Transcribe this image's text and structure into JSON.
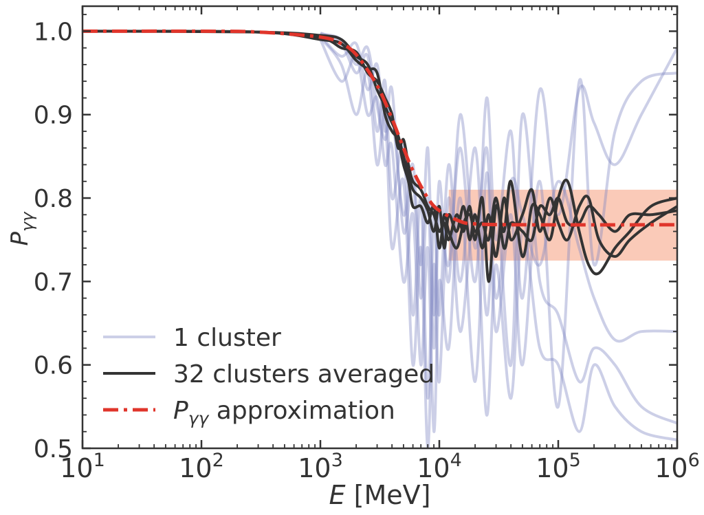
{
  "chart_data": {
    "type": "line",
    "title": "",
    "xlabel": "E [MeV]",
    "xlabel_var": "E",
    "xlabel_unit": "[MeV]",
    "ylabel": "P_γγ",
    "x_scale": "log",
    "xlim": [
      10,
      1000000
    ],
    "ylim": [
      0.5,
      1.03
    ],
    "grid": false,
    "legend_position": "lower-left",
    "x_ticks": [
      {
        "value": 10,
        "base": "10",
        "exp": "1"
      },
      {
        "value": 100,
        "base": "10",
        "exp": "2"
      },
      {
        "value": 1000,
        "base": "10",
        "exp": "3"
      },
      {
        "value": 10000,
        "base": "10",
        "exp": "4"
      },
      {
        "value": 100000,
        "base": "10",
        "exp": "5"
      },
      {
        "value": 1000000,
        "base": "10",
        "exp": "6"
      }
    ],
    "y_ticks": [
      0.5,
      0.6,
      0.7,
      0.8,
      0.9,
      1.0
    ],
    "y_tick_labels": [
      "0.5",
      "0.6",
      "0.7",
      "0.8",
      "0.9",
      "1.0"
    ],
    "band": {
      "x": [
        12000,
        1000000
      ],
      "y_low": 0.725,
      "y_high": 0.81,
      "color": "#f8b8a0"
    },
    "colors": {
      "single": "#8088c4",
      "averaged": "#333333",
      "approx": "#e0352b",
      "axis": "#333333"
    },
    "legend": [
      {
        "label": "1 cluster",
        "style": "single"
      },
      {
        "label": "32 clusters averaged",
        "style": "averaged"
      },
      {
        "label_var": "P",
        "label_sub": "γγ",
        "label_rest": " approximation",
        "style": "approx"
      }
    ],
    "series": [
      {
        "name": "P_γγ approximation",
        "style": "approx",
        "x": [
          10,
          100,
          300,
          1000,
          1500,
          2000,
          3000,
          4000,
          5000,
          6000,
          8000,
          10000,
          15000,
          20000,
          50000,
          1000000
        ],
        "y": [
          1.0,
          1.0,
          0.999,
          0.993,
          0.985,
          0.972,
          0.935,
          0.895,
          0.86,
          0.833,
          0.8,
          0.785,
          0.772,
          0.769,
          0.768,
          0.768
        ]
      },
      {
        "style": "single",
        "x": [
          1000,
          1500,
          2000,
          2500,
          3000,
          3500,
          4000,
          5000,
          6000,
          7000,
          8000,
          9000,
          10000,
          12000,
          15000,
          20000,
          25000,
          30000,
          40000,
          50000,
          70000,
          100000,
          150000,
          200000,
          300000,
          500000,
          1000000
        ],
        "y": [
          0.995,
          0.97,
          0.985,
          0.93,
          0.96,
          0.88,
          0.93,
          0.76,
          0.82,
          0.68,
          0.8,
          0.62,
          0.78,
          0.72,
          0.86,
          0.7,
          0.92,
          0.75,
          0.88,
          0.68,
          0.93,
          0.78,
          0.93,
          0.89,
          0.84,
          0.9,
          0.98
        ]
      },
      {
        "style": "single",
        "x": [
          1000,
          1500,
          2000,
          2500,
          3000,
          3500,
          4000,
          5000,
          6000,
          7000,
          8000,
          9000,
          10000,
          12000,
          15000,
          20000,
          25000,
          30000,
          40000,
          50000,
          70000,
          100000,
          150000,
          200000,
          300000,
          500000,
          1000000
        ],
        "y": [
          0.99,
          0.94,
          0.97,
          0.9,
          0.92,
          0.84,
          0.86,
          0.7,
          0.78,
          0.6,
          0.74,
          0.52,
          0.7,
          0.62,
          0.8,
          0.58,
          0.83,
          0.64,
          0.78,
          0.6,
          0.82,
          0.55,
          0.94,
          0.72,
          0.88,
          0.94,
          0.95
        ]
      },
      {
        "style": "single",
        "x": [
          1000,
          1500,
          2000,
          2500,
          3000,
          3500,
          4000,
          5000,
          6000,
          7000,
          8000,
          9000,
          10000,
          12000,
          15000,
          20000,
          25000,
          30000,
          40000,
          50000,
          70000,
          100000,
          150000,
          200000,
          300000,
          500000,
          1000000
        ],
        "y": [
          0.998,
          0.985,
          0.95,
          0.97,
          0.88,
          0.94,
          0.8,
          0.86,
          0.66,
          0.8,
          0.56,
          0.78,
          0.66,
          0.84,
          0.7,
          0.86,
          0.66,
          0.8,
          0.6,
          0.9,
          0.7,
          0.66,
          0.58,
          0.62,
          0.6,
          0.55,
          0.53
        ]
      },
      {
        "style": "single",
        "x": [
          1000,
          1500,
          2000,
          2500,
          3000,
          3500,
          4000,
          5000,
          6000,
          7000,
          8000,
          9000,
          10000,
          12000,
          15000,
          20000,
          25000,
          30000,
          40000,
          50000,
          70000,
          100000,
          150000,
          200000,
          300000,
          500000,
          1000000
        ],
        "y": [
          0.992,
          0.96,
          0.9,
          0.95,
          0.84,
          0.9,
          0.74,
          0.82,
          0.6,
          0.74,
          0.5,
          0.72,
          0.58,
          0.8,
          0.64,
          0.78,
          0.54,
          0.72,
          0.56,
          0.76,
          0.62,
          0.6,
          0.52,
          0.6,
          0.55,
          0.52,
          0.51
        ]
      },
      {
        "style": "single",
        "x": [
          1000,
          1500,
          2000,
          2500,
          3000,
          3500,
          4000,
          5000,
          6000,
          7000,
          8000,
          9000,
          10000,
          12000,
          15000,
          20000,
          25000,
          30000,
          40000,
          50000,
          70000,
          100000,
          150000,
          200000,
          300000,
          500000,
          1000000
        ],
        "y": [
          0.997,
          0.99,
          0.96,
          0.98,
          0.91,
          0.87,
          0.9,
          0.78,
          0.84,
          0.72,
          0.86,
          0.66,
          0.82,
          0.7,
          0.9,
          0.74,
          0.86,
          0.68,
          0.82,
          0.78,
          0.72,
          0.82,
          0.74,
          0.68,
          0.63,
          0.64,
          0.64
        ]
      },
      {
        "name": "32 clusters averaged",
        "style": "averaged",
        "x": [
          10,
          300,
          1000,
          1500,
          2000,
          2500,
          3000,
          3500,
          4000,
          4500,
          5000,
          5500,
          6000,
          7000,
          8000,
          9000,
          10000,
          11000,
          12000,
          14000,
          16000,
          18000,
          20000,
          23000,
          26000,
          30000,
          35000,
          40000,
          50000,
          60000,
          70000,
          85000,
          100000,
          120000,
          150000,
          180000,
          220000,
          300000,
          400000,
          600000,
          1000000
        ],
        "y": [
          1.0,
          0.999,
          0.992,
          0.98,
          0.975,
          0.95,
          0.94,
          0.92,
          0.9,
          0.86,
          0.87,
          0.84,
          0.82,
          0.81,
          0.79,
          0.78,
          0.76,
          0.77,
          0.75,
          0.78,
          0.76,
          0.79,
          0.75,
          0.8,
          0.7,
          0.79,
          0.76,
          0.82,
          0.73,
          0.79,
          0.78,
          0.75,
          0.8,
          0.82,
          0.76,
          0.72,
          0.71,
          0.74,
          0.76,
          0.79,
          0.8
        ]
      },
      {
        "style": "averaged",
        "x": [
          10,
          300,
          1000,
          1500,
          2000,
          2500,
          3000,
          3500,
          4000,
          4500,
          5000,
          5500,
          6000,
          7000,
          8000,
          9000,
          10000,
          11000,
          12000,
          14000,
          16000,
          18000,
          20000,
          23000,
          26000,
          30000,
          35000,
          40000,
          50000,
          60000,
          70000,
          85000,
          100000,
          120000,
          150000,
          180000,
          220000,
          300000,
          400000,
          600000,
          1000000
        ],
        "y": [
          1.0,
          0.999,
          0.995,
          0.99,
          0.97,
          0.96,
          0.93,
          0.91,
          0.89,
          0.875,
          0.85,
          0.83,
          0.81,
          0.8,
          0.785,
          0.76,
          0.79,
          0.74,
          0.78,
          0.76,
          0.79,
          0.75,
          0.78,
          0.74,
          0.78,
          0.73,
          0.8,
          0.75,
          0.78,
          0.81,
          0.76,
          0.8,
          0.77,
          0.75,
          0.79,
          0.8,
          0.75,
          0.73,
          0.75,
          0.77,
          0.79
        ]
      },
      {
        "style": "averaged",
        "x": [
          10,
          300,
          1000,
          1500,
          2000,
          2500,
          3000,
          3500,
          4000,
          4500,
          5000,
          5500,
          6000,
          7000,
          8000,
          9000,
          10000,
          11000,
          12000,
          14000,
          16000,
          18000,
          20000,
          23000,
          26000,
          30000,
          35000,
          40000,
          50000,
          60000,
          70000,
          85000,
          100000,
          120000,
          150000,
          180000,
          220000,
          300000,
          400000,
          600000,
          1000000
        ],
        "y": [
          1.0,
          0.999,
          0.99,
          0.985,
          0.965,
          0.955,
          0.95,
          0.9,
          0.88,
          0.87,
          0.84,
          0.82,
          0.79,
          0.79,
          0.77,
          0.79,
          0.74,
          0.78,
          0.76,
          0.74,
          0.77,
          0.78,
          0.76,
          0.77,
          0.75,
          0.8,
          0.74,
          0.77,
          0.76,
          0.75,
          0.79,
          0.78,
          0.8,
          0.77,
          0.77,
          0.79,
          0.78,
          0.76,
          0.78,
          0.78,
          0.785
        ]
      }
    ]
  }
}
